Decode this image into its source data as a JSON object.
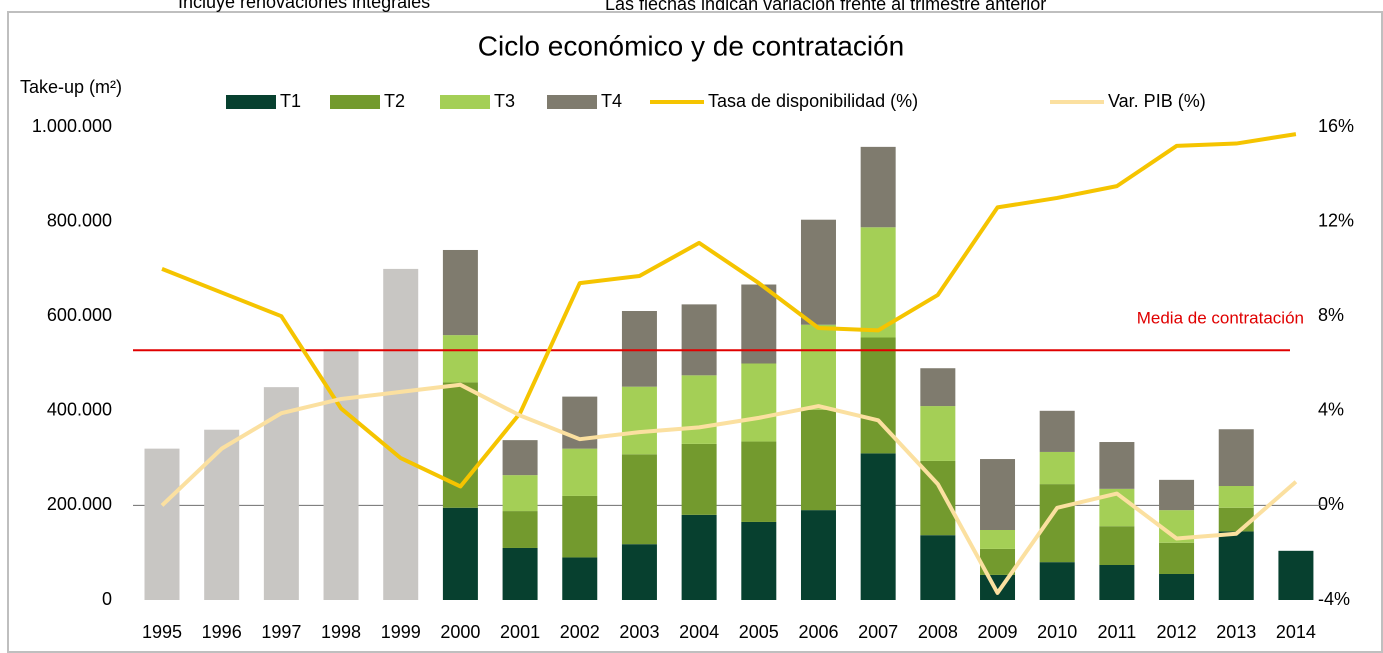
{
  "chart_data": {
    "type": "bar",
    "stacked": true,
    "title": "Ciclo económico y de contratación",
    "annotations": [
      "Incluye renovaciones integrales",
      "Las flechas indican variación frente al trimestre anterior"
    ],
    "y_label": "Take-up (m²)",
    "categories": [
      "1995",
      "1996",
      "1997",
      "1998",
      "1999",
      "2000",
      "2001",
      "2002",
      "2003",
      "2004",
      "2005",
      "2006",
      "2007",
      "2008",
      "2009",
      "2010",
      "2011",
      "2012",
      "2013",
      "2014"
    ],
    "series": [
      {
        "color": "#c8c6c3",
        "values": [
          320000,
          360000,
          450000,
          530000,
          700000,
          null,
          null,
          null,
          null,
          null,
          null,
          null,
          null,
          null,
          null,
          null,
          null,
          null,
          null,
          null
        ]
      },
      {
        "name": "T1",
        "color": "#07402f",
        "values": [
          null,
          null,
          null,
          null,
          null,
          195000,
          110000,
          90000,
          118000,
          180000,
          165000,
          190000,
          310000,
          137000,
          53000,
          80000,
          74000,
          55000,
          145000,
          104000
        ]
      },
      {
        "name": "T2",
        "color": "#739a2e",
        "values": [
          null,
          null,
          null,
          null,
          null,
          265000,
          78000,
          130000,
          190000,
          150000,
          170000,
          212000,
          245000,
          157000,
          55000,
          165000,
          82000,
          66000,
          50000,
          null
        ]
      },
      {
        "name": "T3",
        "color": "#a4cf56",
        "values": [
          null,
          null,
          null,
          null,
          null,
          100000,
          76000,
          100000,
          143000,
          145000,
          165000,
          180000,
          233000,
          116000,
          40000,
          68000,
          79000,
          69000,
          46000,
          null
        ]
      },
      {
        "name": "T4",
        "color": "#7f7b6e",
        "values": [
          null,
          null,
          null,
          null,
          null,
          180000,
          74000,
          110000,
          160000,
          150000,
          167000,
          222000,
          170000,
          80000,
          150000,
          87000,
          99000,
          64000,
          120000,
          null
        ]
      },
      {
        "name": "Tasa de disponibilidad (%)",
        "color": "#f5c400",
        "axis": "y2",
        "values": [
          10.0,
          9.0,
          8.0,
          4.1,
          2.0,
          0.8,
          3.9,
          9.4,
          9.7,
          11.1,
          9.4,
          7.5,
          7.4,
          8.9,
          12.6,
          13.0,
          13.5,
          15.2,
          15.3,
          15.7
        ]
      },
      {
        "name": "Var. PIB (%)",
        "color": "#fbe0a0",
        "axis": "y2",
        "values": [
          0.0,
          2.4,
          3.9,
          4.5,
          4.8,
          5.1,
          3.8,
          2.8,
          3.1,
          3.3,
          3.7,
          4.2,
          3.6,
          0.9,
          -3.7,
          -0.1,
          0.5,
          -1.4,
          -1.2,
          1.0
        ]
      }
    ],
    "reference_line": {
      "label": "Media de contratación",
      "value": 528000,
      "color": "#e00000"
    },
    "ylim": [
      0,
      1000000
    ],
    "yticks": [
      0,
      {
        "value": 200000,
        "label": "200.000"
      },
      {
        "value": 400000,
        "label": "400.000"
      },
      {
        "value": 600000,
        "label": "600.000"
      },
      {
        "value": 800000,
        "label": "800.000"
      },
      {
        "value": 1000000,
        "label": "1.000.000"
      }
    ],
    "y2lim": [
      -4,
      16
    ],
    "y2ticks": [
      {
        "value": -4,
        "label": "-4%"
      },
      {
        "value": 0,
        "label": "0%"
      },
      {
        "value": 4,
        "label": "4%"
      },
      {
        "value": 8,
        "label": "8%"
      },
      {
        "value": 12,
        "label": "12%"
      },
      {
        "value": 16,
        "label": "16%"
      }
    ],
    "grid": false
  }
}
